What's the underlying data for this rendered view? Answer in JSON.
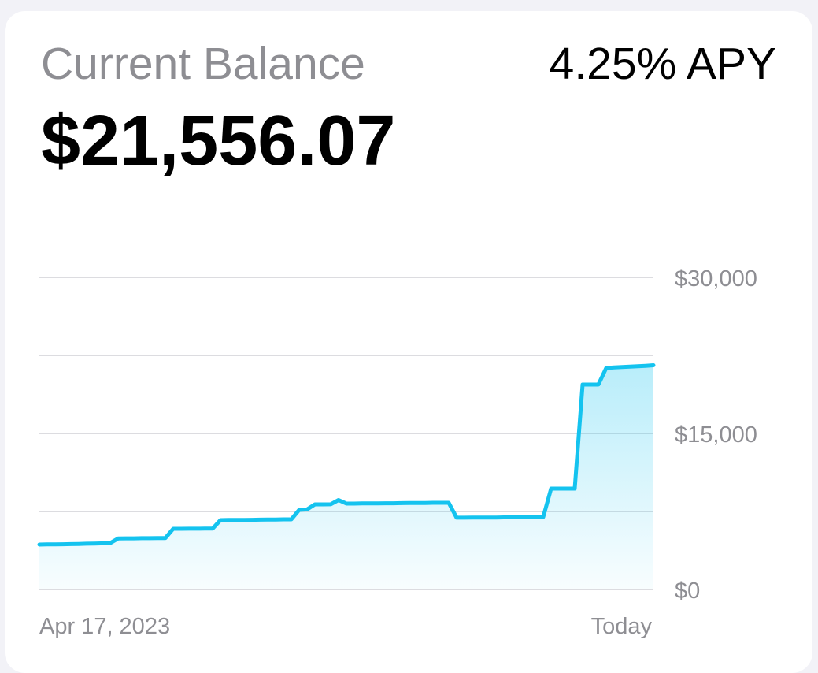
{
  "header": {
    "label": "Current Balance",
    "balance": "$21,556.07",
    "rate": "4.25% APY"
  },
  "chart_data": {
    "type": "area-line",
    "categories": [
      "Apr 17, 2023",
      null,
      null,
      null,
      null,
      null,
      null,
      null,
      null,
      null,
      null,
      null,
      null,
      null,
      null,
      null,
      null,
      null,
      null,
      null,
      null,
      null,
      null,
      null,
      null,
      null,
      null,
      null,
      null,
      null,
      null,
      null,
      null,
      null,
      null,
      null,
      null,
      null,
      null,
      null,
      null,
      null,
      null,
      null,
      null,
      null,
      null,
      null,
      null,
      null,
      null,
      null,
      null,
      null,
      null,
      null,
      null,
      null,
      null,
      null,
      null,
      null,
      null,
      null,
      null,
      null,
      null,
      null,
      null,
      null,
      null,
      null,
      null,
      null,
      null,
      null,
      null,
      null,
      "Today"
    ],
    "values": [
      4318,
      4330,
      4340,
      4350,
      4360,
      4380,
      4400,
      4420,
      4440,
      4460,
      4900,
      4920,
      4920,
      4930,
      4930,
      4940,
      4940,
      5830,
      5830,
      5840,
      5840,
      5850,
      5850,
      6670,
      6680,
      6680,
      6690,
      6700,
      6710,
      6720,
      6730,
      6740,
      6740,
      7650,
      7700,
      8180,
      8180,
      8190,
      8600,
      8260,
      8260,
      8270,
      8270,
      8280,
      8290,
      8290,
      8300,
      8310,
      8320,
      8320,
      8330,
      8330,
      8330,
      6900,
      6900,
      6910,
      6910,
      6920,
      6920,
      6930,
      6930,
      6940,
      6950,
      6960,
      6970,
      9700,
      9700,
      9700,
      9700,
      19700,
      19700,
      19700,
      21290,
      21350,
      21380,
      21420,
      21460,
      21500,
      21556.07
    ],
    "color": "#14c3ef",
    "ylim": [
      0,
      30000
    ],
    "yticks": [
      {
        "value": 0,
        "label": "$0"
      },
      {
        "value": 15000,
        "label": "$15,000"
      },
      {
        "value": 30000,
        "label": "$30,000"
      }
    ],
    "ygrid": [
      0,
      7500,
      15000,
      22500,
      30000
    ]
  }
}
